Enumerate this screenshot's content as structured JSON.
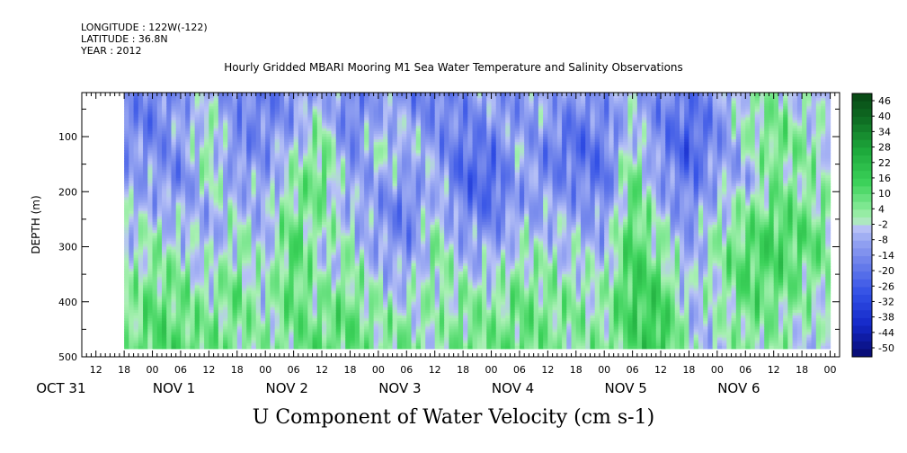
{
  "header": {
    "longitude": "LONGITUDE : 122W(-122)",
    "latitude": "LATITUDE : 36.8N",
    "year": "YEAR : 2012"
  },
  "chart_data": {
    "type": "heatmap",
    "title": "Hourly Gridded MBARI Mooring M1 Sea Water Temperature and Salinity Observations",
    "xlabel": "U Component of Water Velocity (cm s-1)",
    "ylabel": "DEPTH (m)",
    "x_range_hours_from_oct31_00": [
      9,
      170
    ],
    "data_range_hours": [
      18,
      168
    ],
    "ylim": [
      500,
      20
    ],
    "depth_range_data": [
      20,
      485
    ],
    "y_ticks": [
      100,
      200,
      300,
      400,
      500
    ],
    "y_tick_labels": [
      "100",
      "200",
      "300",
      "400",
      "500"
    ],
    "hour_ticks": [
      "12",
      "18",
      "00",
      "06",
      "12",
      "18",
      "00",
      "06",
      "12",
      "18",
      "00",
      "06",
      "12",
      "18",
      "00",
      "06",
      "12",
      "18",
      "00",
      "06",
      "12",
      "18",
      "00",
      "06",
      "12",
      "18",
      "00"
    ],
    "hour_tick_positions": [
      12,
      18,
      24,
      30,
      36,
      42,
      48,
      54,
      60,
      66,
      72,
      78,
      84,
      90,
      96,
      102,
      108,
      114,
      120,
      126,
      132,
      138,
      144,
      150,
      156,
      162,
      168
    ],
    "date_labels": [
      "OCT 31",
      "NOV  1",
      "NOV  2",
      "NOV  3",
      "NOV  4",
      "NOV  5",
      "NOV  6"
    ],
    "date_label_positions": [
      0,
      24,
      48,
      72,
      96,
      120,
      144
    ],
    "colorbar_labels": [
      "46",
      "40",
      "34",
      "28",
      "22",
      "16",
      "10",
      "4",
      "-2",
      "-8",
      "-14",
      "-20",
      "-26",
      "-32",
      "-38",
      "-44",
      "-50"
    ],
    "colorbar_range": [
      -50,
      50
    ],
    "colors": {
      "strong_negative": "#080a80",
      "negative": "#3048d8",
      "weak_negative": "#8f9ff0",
      "near_zero": "#b8c0f4",
      "weak_positive": "#90e898",
      "positive": "#40d060",
      "strong_positive": "#0a4a18"
    },
    "u_field_columns": [
      {
        "hour": 18,
        "depth": [
          -10,
          -12,
          -8,
          -6,
          -4,
          -2,
          0,
          2,
          4,
          6
        ]
      },
      {
        "hour": 24,
        "depth": [
          -14,
          -16,
          -12,
          -8,
          -4,
          2,
          6,
          10,
          12,
          14
        ]
      },
      {
        "hour": 30,
        "depth": [
          -8,
          -6,
          -10,
          -14,
          -6,
          -2,
          4,
          8,
          10,
          12
        ]
      },
      {
        "hour": 36,
        "depth": [
          -4,
          2,
          6,
          2,
          -4,
          -6,
          -2,
          2,
          6,
          10
        ]
      },
      {
        "hour": 42,
        "depth": [
          -12,
          -10,
          -14,
          -6,
          -2,
          2,
          6,
          10,
          8,
          6
        ]
      },
      {
        "hour": 48,
        "depth": [
          -16,
          -14,
          -10,
          -8,
          -6,
          -4,
          -2,
          0,
          2,
          4
        ]
      },
      {
        "hour": 54,
        "depth": [
          -10,
          -8,
          -2,
          4,
          8,
          12,
          14,
          12,
          10,
          8
        ]
      },
      {
        "hour": 60,
        "depth": [
          -4,
          2,
          8,
          12,
          6,
          2,
          -2,
          4,
          8,
          12
        ]
      },
      {
        "hour": 66,
        "depth": [
          -14,
          -16,
          -12,
          -8,
          -4,
          0,
          4,
          8,
          12,
          10
        ]
      },
      {
        "hour": 72,
        "depth": [
          -8,
          -4,
          0,
          -6,
          -10,
          -8,
          -4,
          0,
          4,
          6
        ]
      },
      {
        "hour": 78,
        "depth": [
          -12,
          -6,
          -2,
          -8,
          -16,
          -14,
          -8,
          -2,
          4,
          8
        ]
      },
      {
        "hour": 84,
        "depth": [
          -16,
          -12,
          -8,
          -4,
          0,
          4,
          6,
          4,
          2,
          0
        ]
      },
      {
        "hour": 90,
        "depth": [
          -10,
          -14,
          -18,
          -20,
          -14,
          -8,
          -2,
          4,
          8,
          10
        ]
      },
      {
        "hour": 96,
        "depth": [
          -6,
          -10,
          -16,
          -22,
          -18,
          -10,
          -4,
          2,
          6,
          8
        ]
      },
      {
        "hour": 102,
        "depth": [
          -12,
          -8,
          -4,
          -6,
          -8,
          -2,
          4,
          8,
          10,
          12
        ]
      },
      {
        "hour": 108,
        "depth": [
          -4,
          -8,
          -14,
          -12,
          -6,
          -2,
          2,
          6,
          8,
          6
        ]
      },
      {
        "hour": 114,
        "depth": [
          -10,
          -16,
          -20,
          -14,
          -8,
          -4,
          0,
          4,
          6,
          4
        ]
      },
      {
        "hour": 120,
        "depth": [
          -8,
          -12,
          -16,
          -18,
          -12,
          -6,
          -2,
          2,
          4,
          6
        ]
      },
      {
        "hour": 126,
        "depth": [
          -4,
          -2,
          4,
          10,
          12,
          14,
          16,
          18,
          16,
          12
        ]
      },
      {
        "hour": 132,
        "depth": [
          -10,
          -14,
          -12,
          -8,
          -4,
          2,
          8,
          14,
          18,
          20
        ]
      },
      {
        "hour": 138,
        "depth": [
          -16,
          -20,
          -24,
          -18,
          -12,
          -8,
          -6,
          -4,
          -2,
          0
        ]
      },
      {
        "hour": 144,
        "depth": [
          -8,
          -12,
          -10,
          -6,
          -2,
          2,
          4,
          2,
          0,
          -2
        ]
      },
      {
        "hour": 150,
        "depth": [
          2,
          4,
          -2,
          -6,
          4,
          10,
          14,
          12,
          8,
          6
        ]
      },
      {
        "hour": 156,
        "depth": [
          4,
          8,
          10,
          6,
          10,
          16,
          14,
          10,
          6,
          4
        ]
      },
      {
        "hour": 162,
        "depth": [
          -2,
          2,
          6,
          4,
          8,
          12,
          10,
          6,
          2,
          0
        ]
      },
      {
        "hour": 168,
        "depth": [
          -6,
          -2,
          2,
          0,
          4,
          8,
          6,
          2,
          -2,
          -4
        ]
      }
    ],
    "grid": false
  }
}
